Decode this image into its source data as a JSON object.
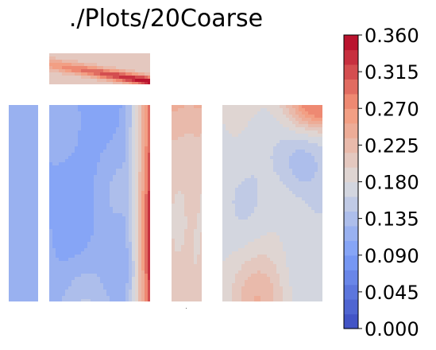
{
  "chart_data": {
    "type": "heatmap",
    "title": "./Plots/20Coarse",
    "colormap": "coolwarm",
    "value_range": [
      0,
      0.36
    ],
    "colorbar_levels": 20,
    "colorbar_ticks": [
      "0.000",
      "0.045",
      "0.090",
      "0.135",
      "0.180",
      "0.225",
      "0.270",
      "0.315",
      "0.360"
    ],
    "panels": [
      {
        "name": "top-panel",
        "value_min": 0.17,
        "value_max": 0.36,
        "hot_region": "bottom-right diagonal band"
      },
      {
        "name": "left-narrow-panel",
        "value_min": 0.1,
        "value_max": 0.13
      },
      {
        "name": "left-wide-panel",
        "value_min": 0.09,
        "value_max": 0.34,
        "hot_region": "right edge"
      },
      {
        "name": "middle-narrow-panel",
        "value_min": 0.17,
        "value_max": 0.24,
        "hot_region": "top"
      },
      {
        "name": "right-panel",
        "value_min": 0.12,
        "value_max": 0.27,
        "hot_region": "top-right corner"
      }
    ]
  }
}
